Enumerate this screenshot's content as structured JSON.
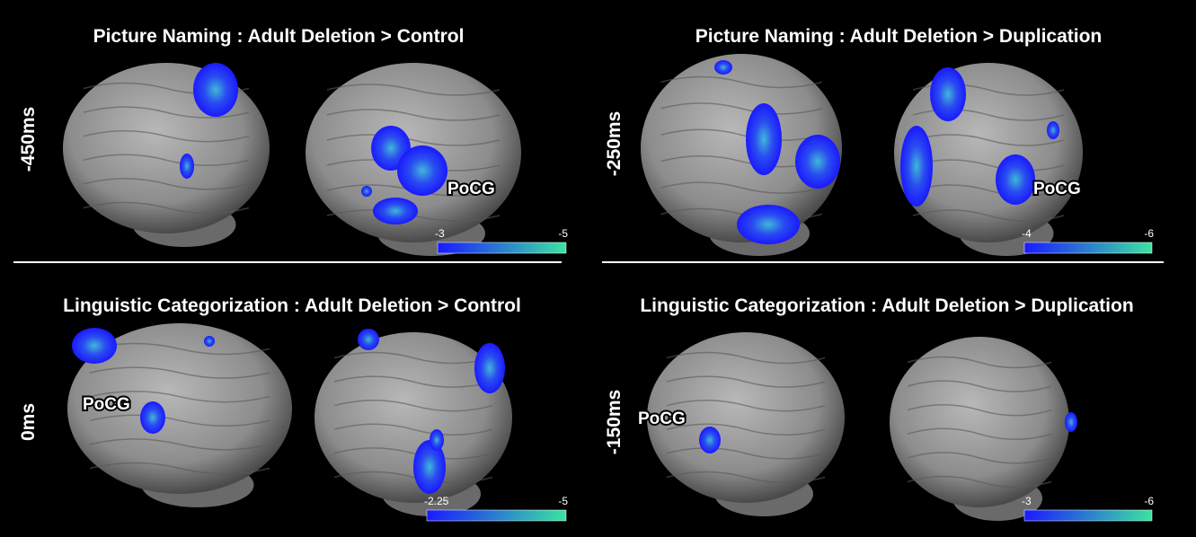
{
  "panels": [
    {
      "title": "Picture Naming : Adult Deletion > Control",
      "time": "-450ms",
      "region": "PoCG",
      "colorbar": {
        "min": "-3",
        "max": "-5"
      }
    },
    {
      "title": "Picture Naming : Adult Deletion > Duplication",
      "time": "-250ms",
      "region": "PoCG",
      "colorbar": {
        "min": "-4",
        "max": "-6"
      }
    },
    {
      "title": "Linguistic Categorization : Adult Deletion > Control",
      "time": "0ms",
      "region": "PoCG",
      "colorbar": {
        "min": "-2.25",
        "max": "-5"
      }
    },
    {
      "title": "Linguistic Categorization : Adult Deletion > Duplication",
      "time": "-150ms",
      "region": "PoCG",
      "colorbar": {
        "min": "-3",
        "max": "-6"
      }
    }
  ]
}
